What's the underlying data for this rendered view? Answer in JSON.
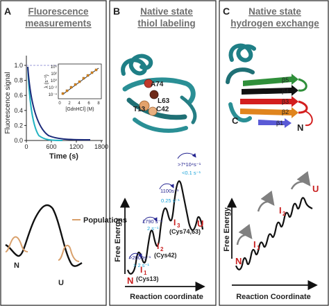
{
  "panelA": {
    "letter": "A",
    "title_line1": "Fluorescence",
    "title_line2": "measurements",
    "ylabel": "Fluorescence signal",
    "xlabel": "Time (s)",
    "yticks": [
      "0.0",
      "0.2",
      "0.4",
      "0.6",
      "0.8",
      "1.0"
    ],
    "xticks": [
      "0",
      "600",
      "1200",
      "1800"
    ],
    "inset_ylabel": "λ (s⁻¹)",
    "inset_xlabel": "[GdnHCl] (M)",
    "inset_yticks": [
      "10⁶",
      "10²",
      "10⁰",
      "10⁻²",
      "10⁻⁴"
    ],
    "inset_xticks": [
      "0",
      "2",
      "4",
      "6",
      "8"
    ],
    "populations_label": "Populations",
    "state_N": "N",
    "state_U": "U",
    "colors": {
      "dark_curve": "#1b2a7a",
      "light_curve": "#23b3c2",
      "inset_marker": "#e08a1e",
      "population": "#d9a06b"
    }
  },
  "panelB": {
    "letter": "B",
    "title_line1": "Native state",
    "title_line2": "thiol labeling",
    "residues": [
      "A74",
      "L63",
      "T13",
      "C42"
    ],
    "ylabel": "Free Energy",
    "xlabel": "Reaction coordinate",
    "states": {
      "N": "N",
      "I1": "I",
      "I1_sub": "1",
      "I1_note": "(Cys13)",
      "I2": "I",
      "I2_sub": "2",
      "I2_note": "(Cys42)",
      "I3": "I",
      "I3_sub": "3",
      "I3_note": "(Cys74,63)",
      "U": "U"
    },
    "rates": [
      {
        "top": ">2000s⁻¹",
        "bottom": "> 2 s⁻¹"
      },
      {
        "top": "1790 s⁻¹",
        "bottom": "2 s⁻¹"
      },
      {
        "top": "1100s⁻¹",
        "bottom": "0.25 s⁻¹"
      },
      {
        "top": ">7*10⁴s⁻¹",
        "bottom": "<0.1 s⁻¹"
      }
    ],
    "colors": {
      "red": "#c81e1e",
      "navy": "#22228f",
      "cyan": "#1aa3d9"
    }
  },
  "panelC": {
    "letter": "C",
    "title_line1": "Native state",
    "title_line2": "hydrogen exchange",
    "strands": [
      "β5",
      "β4",
      "β3",
      "β2",
      "β1"
    ],
    "terminus_C": "C",
    "terminus_N": "N",
    "ylabel": "Free Energy",
    "xlabel": "Reaction Coordinate",
    "states": {
      "N": "N",
      "I1": "I",
      "I1_sub": "1",
      "I2": "I",
      "I2_sub": "2",
      "U": "U"
    }
  }
}
